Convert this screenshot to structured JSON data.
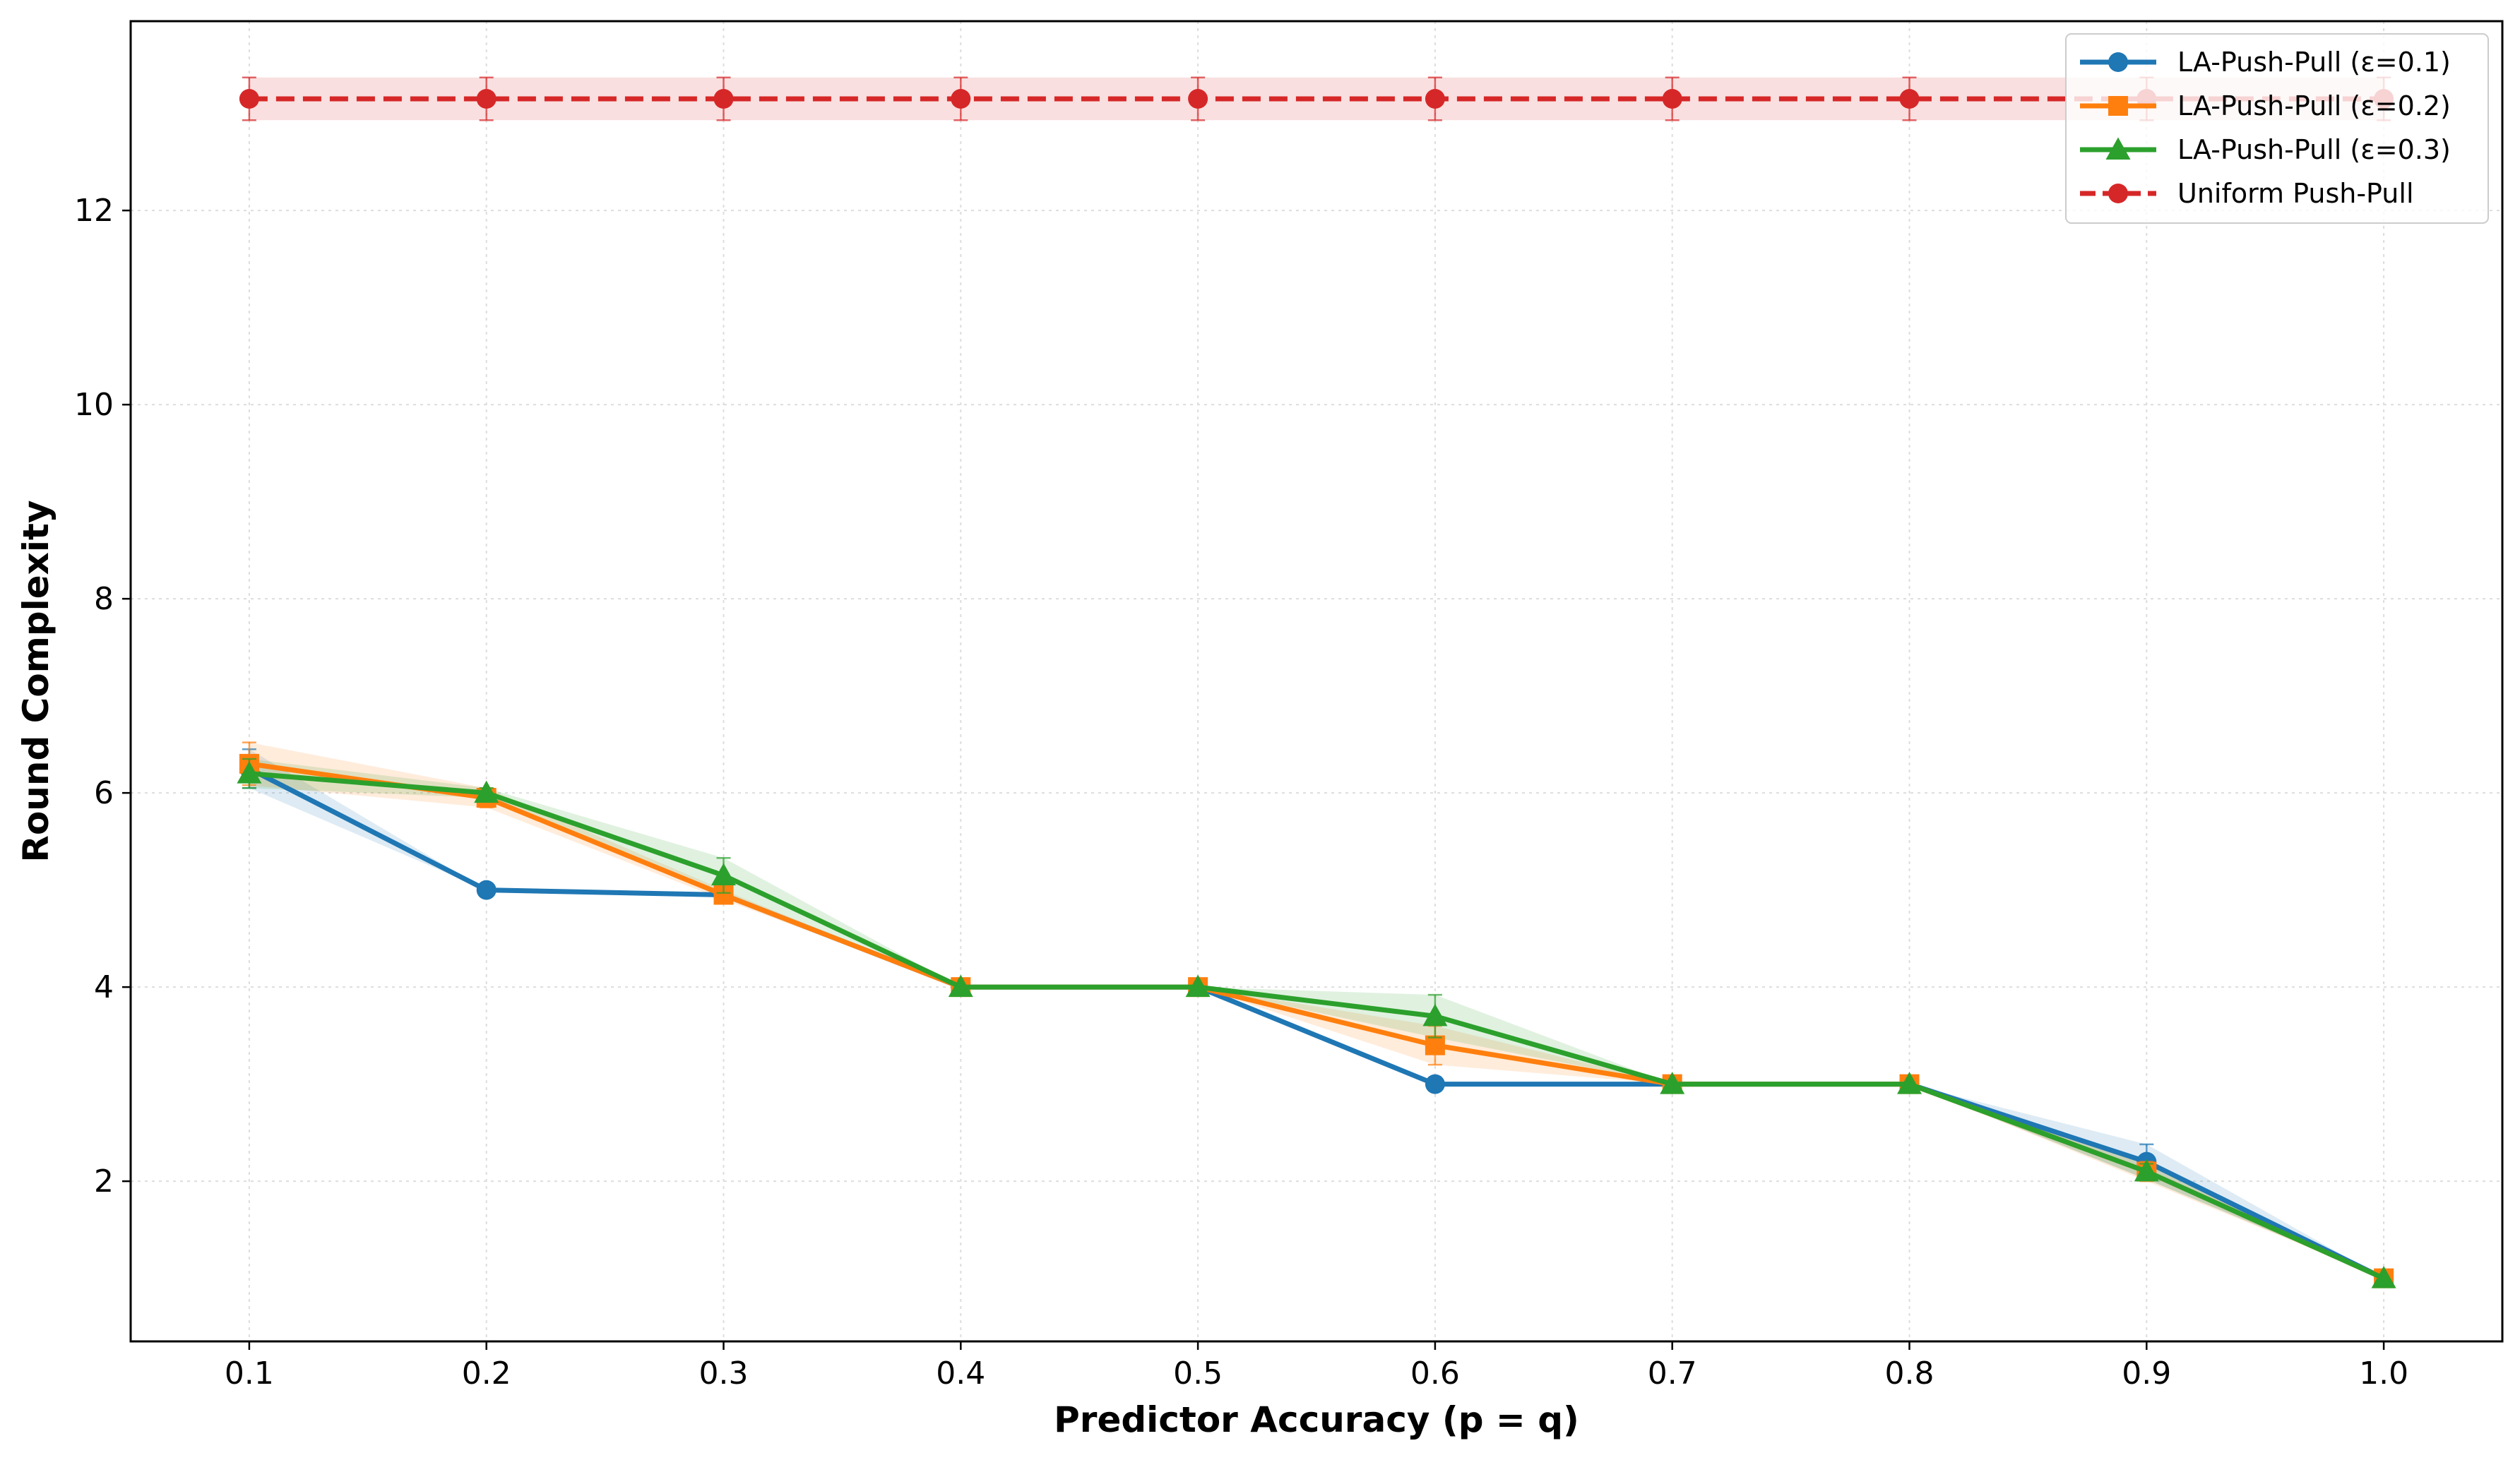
{
  "chart_data": {
    "type": "line",
    "title": "",
    "xlabel": "Predictor Accuracy (p = q)",
    "ylabel": "Round Complexity",
    "x": [
      0.1,
      0.2,
      0.3,
      0.4,
      0.5,
      0.6,
      0.7,
      0.8,
      0.9,
      1.0
    ],
    "x_tick_labels": [
      "0.1",
      "0.2",
      "0.3",
      "0.4",
      "0.5",
      "0.6",
      "0.7",
      "0.8",
      "0.9",
      "1.0"
    ],
    "y_ticks": [
      2,
      4,
      6,
      8,
      10,
      12
    ],
    "y_tick_labels": [
      "2",
      "4",
      "6",
      "8",
      "10",
      "12"
    ],
    "xlim": [
      0.05,
      1.05
    ],
    "ylim": [
      0.35,
      13.95
    ],
    "grid": true,
    "legend_position": "top-right",
    "series": [
      {
        "name": "LA-Push-Pull (ε=0.1)",
        "color": "#1f77b4",
        "marker": "circle",
        "dashed": false,
        "values": [
          6.25,
          5.0,
          4.95,
          4.0,
          4.0,
          3.0,
          3.0,
          3.0,
          2.2,
          1.0
        ],
        "errors": [
          0.2,
          0,
          0,
          0,
          0,
          0,
          0,
          0,
          0.18,
          0
        ]
      },
      {
        "name": "LA-Push-Pull (ε=0.2)",
        "color": "#ff7f0e",
        "marker": "square",
        "dashed": false,
        "values": [
          6.3,
          5.95,
          4.95,
          4.0,
          4.0,
          3.4,
          3.0,
          3.0,
          2.1,
          1.0
        ],
        "errors": [
          0.22,
          0.1,
          0.05,
          0,
          0,
          0.2,
          0,
          0,
          0.1,
          0
        ]
      },
      {
        "name": "LA-Push-Pull (ε=0.3)",
        "color": "#2ca02c",
        "marker": "triangle",
        "dashed": false,
        "values": [
          6.2,
          6.0,
          5.15,
          4.0,
          4.0,
          3.7,
          3.0,
          3.0,
          2.1,
          1.0
        ],
        "errors": [
          0.15,
          0.05,
          0.18,
          0,
          0,
          0.22,
          0,
          0,
          0.08,
          0
        ]
      },
      {
        "name": "Uniform Push-Pull",
        "color": "#d62728",
        "marker": "circle",
        "dashed": true,
        "values": [
          13.15,
          13.15,
          13.15,
          13.15,
          13.15,
          13.15,
          13.15,
          13.15,
          13.15,
          13.15
        ],
        "errors": [
          0.22,
          0.22,
          0.22,
          0.22,
          0.22,
          0.22,
          0.22,
          0.22,
          0.22,
          0.22
        ]
      }
    ]
  }
}
